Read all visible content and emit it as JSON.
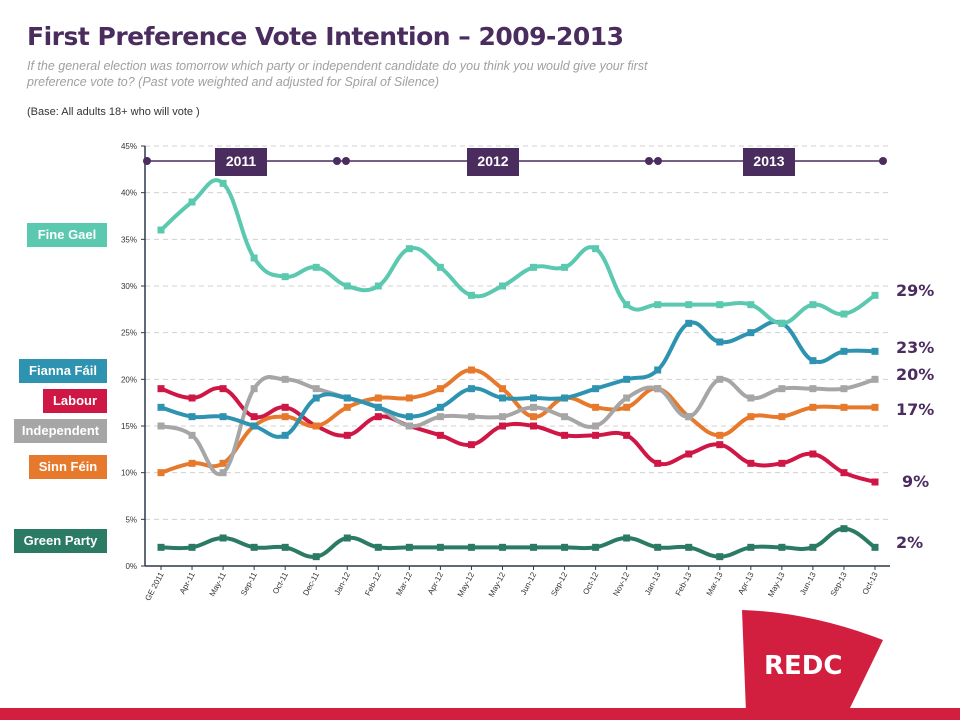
{
  "header": {
    "title": "First Preference Vote Intention – 2009-2013",
    "subtitle": "If the general election was tomorrow which party or independent candidate do you think you would give your first preference vote to?  (Past vote weighted and adjusted for Spiral of Silence)",
    "base": "(Base: All adults 18+ who will vote )"
  },
  "timeline": {
    "years": [
      "2011",
      "2012",
      "2013"
    ],
    "color": "#4a2c5e"
  },
  "brand": {
    "logo_text": "REDC",
    "color": "#d31f3f"
  },
  "chart_data": {
    "type": "line",
    "title": "First Preference Vote Intention – 2009-2013",
    "xlabel": "",
    "ylabel": "",
    "ylim": [
      0,
      45
    ],
    "yticks": [
      "0%",
      "5%",
      "10%",
      "15%",
      "20%",
      "25%",
      "30%",
      "35%",
      "40%",
      "45%"
    ],
    "grid": true,
    "legend_placement": "left",
    "categories": [
      "GE 2011",
      "Apr-11",
      "May-11",
      "Sep-11",
      "Oct-11",
      "Dec-11",
      "Jan-12",
      "Feb-12",
      "Mar-12",
      "Apr-12",
      "May-12",
      "May-12",
      "Jun-12",
      "Sep-12",
      "Oct-12",
      "Nov-12",
      "Jan-13",
      "Feb-13",
      "Mar-13",
      "Apr-13",
      "May-13",
      "Jun-13",
      "Sep-13",
      "Oct-13"
    ],
    "series": [
      {
        "name": "Fine Gael",
        "color": "#5bc8b0",
        "end_label": "29%",
        "values": [
          36,
          39,
          41,
          33,
          31,
          32,
          30,
          30,
          34,
          32,
          29,
          30,
          32,
          32,
          34,
          28,
          28,
          28,
          28,
          28,
          26,
          28,
          27,
          29
        ]
      },
      {
        "name": "Fianna Fáil",
        "color": "#2e93b0",
        "end_label": "23%",
        "values": [
          17,
          16,
          16,
          15,
          14,
          18,
          18,
          17,
          16,
          17,
          19,
          18,
          18,
          18,
          19,
          20,
          21,
          26,
          24,
          25,
          26,
          22,
          23,
          23
        ]
      },
      {
        "name": "Labour",
        "color": "#cf1745",
        "end_label": "9%",
        "values": [
          19,
          18,
          19,
          16,
          17,
          15,
          14,
          16,
          15,
          14,
          13,
          15,
          15,
          14,
          14,
          14,
          11,
          12,
          13,
          11,
          11,
          12,
          10,
          9
        ]
      },
      {
        "name": "Independent",
        "color": "#a6a6a6",
        "end_label": "20%",
        "values": [
          15,
          14,
          10,
          19,
          20,
          19,
          18,
          17,
          15,
          16,
          16,
          16,
          17,
          16,
          15,
          18,
          19,
          16,
          20,
          18,
          19,
          19,
          19,
          20
        ]
      },
      {
        "name": "Sinn Féin",
        "color": "#e6792b",
        "end_label": "17%",
        "values": [
          10,
          11,
          11,
          15,
          16,
          15,
          17,
          18,
          18,
          19,
          21,
          19,
          16,
          18,
          17,
          17,
          19,
          16,
          14,
          16,
          16,
          17,
          17,
          17
        ]
      },
      {
        "name": "Green Party",
        "color": "#2a7a64",
        "end_label": "2%",
        "values": [
          2,
          2,
          3,
          2,
          2,
          1,
          3,
          2,
          2,
          2,
          2,
          2,
          2,
          2,
          2,
          3,
          2,
          2,
          1,
          2,
          2,
          2,
          4,
          2
        ]
      }
    ]
  }
}
